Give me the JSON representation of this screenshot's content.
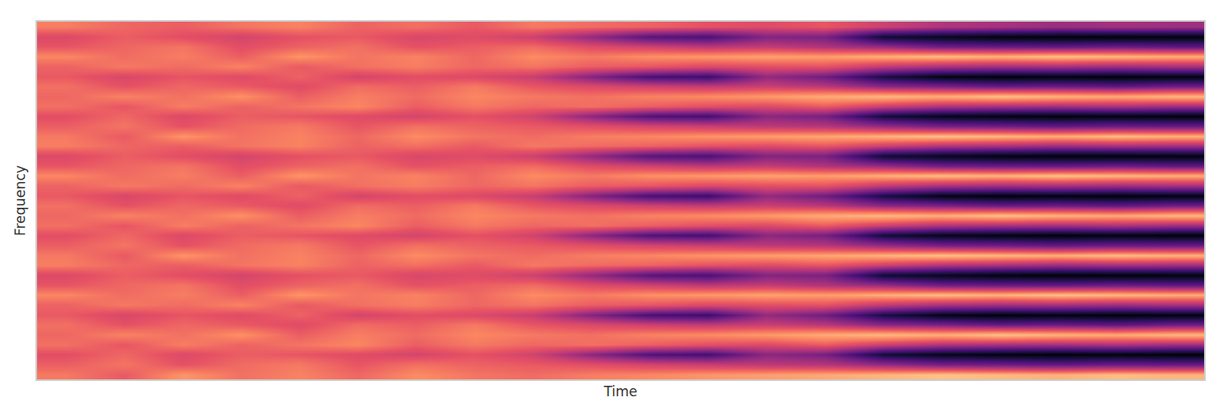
{
  "chart_data": {
    "type": "heatmap",
    "xlabel": "Time",
    "ylabel": "Frequency",
    "tick_labels": false,
    "zlim": [
      0,
      1
    ],
    "cells": [
      [
        0.72,
        0.65,
        0.78,
        0.7,
        0.74,
        0.68,
        0.76,
        0.71,
        0.69,
        0.73,
        0.75,
        0.78,
        0.8,
        0.82,
        0.85,
        0.88,
        0.86,
        0.84,
        0.87,
        0.85
      ],
      [
        0.66,
        0.71,
        0.63,
        0.69,
        0.72,
        0.64,
        0.7,
        0.67,
        0.65,
        0.62,
        0.58,
        0.55,
        0.52,
        0.5,
        0.42,
        0.35,
        0.33,
        0.3,
        0.32,
        0.31
      ],
      [
        0.62,
        0.68,
        0.6,
        0.66,
        0.64,
        0.61,
        0.58,
        0.63,
        0.57,
        0.4,
        0.25,
        0.22,
        0.4,
        0.35,
        0.1,
        0.04,
        0.02,
        0.01,
        0.02,
        0.01
      ],
      [
        0.7,
        0.64,
        0.73,
        0.67,
        0.71,
        0.75,
        0.66,
        0.72,
        0.68,
        0.7,
        0.66,
        0.62,
        0.6,
        0.65,
        0.55,
        0.48,
        0.46,
        0.45,
        0.47,
        0.44
      ],
      [
        0.68,
        0.74,
        0.7,
        0.77,
        0.66,
        0.73,
        0.69,
        0.75,
        0.72,
        0.7,
        0.74,
        0.76,
        0.79,
        0.83,
        0.86,
        0.84,
        0.88,
        0.85,
        0.83,
        0.86
      ],
      [
        0.7,
        0.63,
        0.68,
        0.65,
        0.61,
        0.69,
        0.66,
        0.72,
        0.64,
        0.6,
        0.56,
        0.53,
        0.55,
        0.51,
        0.4,
        0.36,
        0.31,
        0.32,
        0.29,
        0.33
      ],
      [
        0.65,
        0.59,
        0.64,
        0.61,
        0.67,
        0.58,
        0.62,
        0.6,
        0.55,
        0.38,
        0.23,
        0.2,
        0.42,
        0.33,
        0.12,
        0.03,
        0.01,
        0.02,
        0.01,
        0.02
      ],
      [
        0.67,
        0.72,
        0.69,
        0.74,
        0.65,
        0.7,
        0.73,
        0.68,
        0.71,
        0.66,
        0.64,
        0.6,
        0.62,
        0.63,
        0.53,
        0.47,
        0.45,
        0.46,
        0.44,
        0.46
      ],
      [
        0.75,
        0.69,
        0.73,
        0.66,
        0.78,
        0.71,
        0.74,
        0.68,
        0.76,
        0.72,
        0.77,
        0.79,
        0.81,
        0.8,
        0.84,
        0.87,
        0.85,
        0.88,
        0.86,
        0.84
      ],
      [
        0.64,
        0.68,
        0.71,
        0.62,
        0.67,
        0.7,
        0.63,
        0.66,
        0.69,
        0.61,
        0.57,
        0.52,
        0.54,
        0.49,
        0.43,
        0.34,
        0.32,
        0.31,
        0.33,
        0.3
      ],
      [
        0.6,
        0.66,
        0.62,
        0.58,
        0.63,
        0.65,
        0.59,
        0.61,
        0.56,
        0.42,
        0.27,
        0.24,
        0.38,
        0.36,
        0.09,
        0.05,
        0.02,
        0.01,
        0.01,
        0.02
      ],
      [
        0.73,
        0.68,
        0.66,
        0.71,
        0.74,
        0.67,
        0.7,
        0.65,
        0.72,
        0.69,
        0.67,
        0.63,
        0.61,
        0.64,
        0.56,
        0.49,
        0.47,
        0.44,
        0.46,
        0.45
      ],
      [
        0.72,
        0.65,
        0.78,
        0.7,
        0.74,
        0.68,
        0.76,
        0.71,
        0.69,
        0.73,
        0.75,
        0.78,
        0.8,
        0.82,
        0.85,
        0.88,
        0.86,
        0.84,
        0.87,
        0.85
      ],
      [
        0.66,
        0.71,
        0.63,
        0.69,
        0.72,
        0.64,
        0.7,
        0.67,
        0.65,
        0.62,
        0.58,
        0.55,
        0.52,
        0.5,
        0.42,
        0.35,
        0.33,
        0.3,
        0.32,
        0.31
      ],
      [
        0.62,
        0.68,
        0.6,
        0.66,
        0.64,
        0.61,
        0.58,
        0.63,
        0.57,
        0.4,
        0.25,
        0.22,
        0.4,
        0.35,
        0.1,
        0.04,
        0.02,
        0.01,
        0.02,
        0.01
      ],
      [
        0.7,
        0.64,
        0.73,
        0.67,
        0.71,
        0.75,
        0.66,
        0.72,
        0.68,
        0.7,
        0.66,
        0.62,
        0.6,
        0.65,
        0.55,
        0.48,
        0.46,
        0.45,
        0.47,
        0.44
      ],
      [
        0.68,
        0.74,
        0.7,
        0.77,
        0.66,
        0.73,
        0.69,
        0.75,
        0.72,
        0.7,
        0.74,
        0.76,
        0.79,
        0.83,
        0.86,
        0.84,
        0.88,
        0.85,
        0.83,
        0.86
      ],
      [
        0.7,
        0.63,
        0.68,
        0.65,
        0.61,
        0.69,
        0.66,
        0.72,
        0.64,
        0.6,
        0.56,
        0.53,
        0.55,
        0.51,
        0.4,
        0.36,
        0.31,
        0.32,
        0.29,
        0.33
      ],
      [
        0.65,
        0.59,
        0.64,
        0.61,
        0.67,
        0.58,
        0.62,
        0.6,
        0.55,
        0.38,
        0.23,
        0.2,
        0.42,
        0.33,
        0.12,
        0.03,
        0.01,
        0.02,
        0.01,
        0.02
      ],
      [
        0.67,
        0.72,
        0.69,
        0.74,
        0.65,
        0.7,
        0.73,
        0.68,
        0.71,
        0.66,
        0.64,
        0.6,
        0.62,
        0.63,
        0.53,
        0.47,
        0.45,
        0.46,
        0.44,
        0.46
      ],
      [
        0.75,
        0.69,
        0.73,
        0.66,
        0.78,
        0.71,
        0.74,
        0.68,
        0.76,
        0.72,
        0.77,
        0.79,
        0.81,
        0.8,
        0.84,
        0.87,
        0.85,
        0.88,
        0.86,
        0.84
      ],
      [
        0.64,
        0.68,
        0.71,
        0.62,
        0.67,
        0.7,
        0.63,
        0.66,
        0.69,
        0.61,
        0.57,
        0.52,
        0.54,
        0.49,
        0.43,
        0.34,
        0.32,
        0.31,
        0.33,
        0.3
      ],
      [
        0.6,
        0.66,
        0.62,
        0.58,
        0.63,
        0.65,
        0.59,
        0.61,
        0.56,
        0.42,
        0.27,
        0.24,
        0.38,
        0.36,
        0.09,
        0.05,
        0.02,
        0.01,
        0.01,
        0.02
      ],
      [
        0.73,
        0.68,
        0.66,
        0.71,
        0.74,
        0.67,
        0.7,
        0.65,
        0.72,
        0.69,
        0.67,
        0.63,
        0.61,
        0.64,
        0.56,
        0.49,
        0.47,
        0.44,
        0.46,
        0.45
      ],
      [
        0.72,
        0.65,
        0.78,
        0.7,
        0.74,
        0.68,
        0.76,
        0.71,
        0.69,
        0.73,
        0.75,
        0.78,
        0.8,
        0.82,
        0.85,
        0.88,
        0.86,
        0.84,
        0.87,
        0.85
      ],
      [
        0.66,
        0.71,
        0.63,
        0.69,
        0.72,
        0.64,
        0.7,
        0.67,
        0.65,
        0.62,
        0.58,
        0.55,
        0.52,
        0.5,
        0.42,
        0.35,
        0.33,
        0.3,
        0.32,
        0.31
      ],
      [
        0.62,
        0.68,
        0.6,
        0.66,
        0.64,
        0.61,
        0.58,
        0.63,
        0.57,
        0.4,
        0.25,
        0.22,
        0.4,
        0.35,
        0.1,
        0.04,
        0.02,
        0.01,
        0.02,
        0.01
      ],
      [
        0.7,
        0.64,
        0.73,
        0.67,
        0.71,
        0.75,
        0.66,
        0.72,
        0.68,
        0.7,
        0.66,
        0.62,
        0.6,
        0.65,
        0.55,
        0.48,
        0.46,
        0.45,
        0.47,
        0.44
      ],
      [
        0.68,
        0.74,
        0.7,
        0.77,
        0.66,
        0.73,
        0.69,
        0.75,
        0.72,
        0.7,
        0.74,
        0.76,
        0.79,
        0.83,
        0.86,
        0.84,
        0.88,
        0.85,
        0.83,
        0.86
      ],
      [
        0.7,
        0.63,
        0.68,
        0.65,
        0.61,
        0.69,
        0.66,
        0.72,
        0.64,
        0.6,
        0.56,
        0.53,
        0.55,
        0.51,
        0.4,
        0.36,
        0.31,
        0.32,
        0.29,
        0.33
      ],
      [
        0.65,
        0.59,
        0.64,
        0.61,
        0.67,
        0.58,
        0.62,
        0.6,
        0.55,
        0.38,
        0.23,
        0.2,
        0.42,
        0.33,
        0.12,
        0.03,
        0.01,
        0.02,
        0.01,
        0.02
      ],
      [
        0.67,
        0.72,
        0.69,
        0.74,
        0.65,
        0.7,
        0.73,
        0.68,
        0.71,
        0.66,
        0.64,
        0.6,
        0.62,
        0.63,
        0.53,
        0.47,
        0.45,
        0.46,
        0.44,
        0.46
      ],
      [
        0.75,
        0.69,
        0.73,
        0.66,
        0.78,
        0.71,
        0.74,
        0.68,
        0.76,
        0.72,
        0.77,
        0.79,
        0.81,
        0.8,
        0.84,
        0.87,
        0.85,
        0.88,
        0.86,
        0.84
      ],
      [
        0.64,
        0.68,
        0.71,
        0.62,
        0.67,
        0.7,
        0.63,
        0.66,
        0.69,
        0.61,
        0.57,
        0.52,
        0.54,
        0.49,
        0.43,
        0.34,
        0.32,
        0.31,
        0.33,
        0.3
      ],
      [
        0.6,
        0.66,
        0.62,
        0.58,
        0.63,
        0.65,
        0.59,
        0.61,
        0.56,
        0.42,
        0.27,
        0.24,
        0.38,
        0.36,
        0.09,
        0.05,
        0.02,
        0.01,
        0.01,
        0.02
      ],
      [
        0.73,
        0.68,
        0.66,
        0.71,
        0.74,
        0.67,
        0.7,
        0.65,
        0.72,
        0.69,
        0.67,
        0.63,
        0.61,
        0.64,
        0.56,
        0.49,
        0.47,
        0.44,
        0.46,
        0.45
      ]
    ]
  }
}
